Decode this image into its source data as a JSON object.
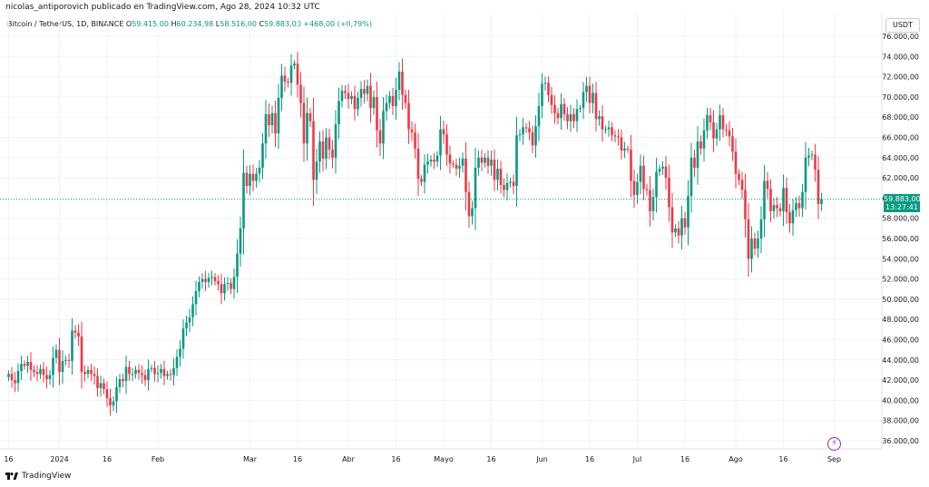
{
  "header": {
    "publisher_line": "nicolas_antiporovich publicado en TradingView.com, Ago 28, 2024 10:32 UTC"
  },
  "legend": {
    "symbol": "Bitcoin / TetherUS, 1D, BINANCE",
    "o_label": "O",
    "o_value": "59.415,00",
    "h_label": "H",
    "h_value": "60.234,98",
    "l_label": "L",
    "l_value": "58.516,00",
    "c_label": "C",
    "c_value": "59.883,00",
    "change": "+468,00 (+0,79%)"
  },
  "currency_button": "USDT",
  "last_price": {
    "value": "59.883,00",
    "countdown": "13:27:41"
  },
  "footer": {
    "brand": "TradingView"
  },
  "colors": {
    "up": "#089981",
    "down": "#f23645",
    "grid": "#f0f3fa",
    "axis_text": "#131722",
    "last_price_line": "#089981",
    "alert": "#9c27b0"
  },
  "icons": {
    "alert": "lightning-bolt-icon",
    "logo": "tradingview-logo-icon"
  },
  "chart_data": {
    "type": "candlestick",
    "title": "Bitcoin / TetherUS, 1D, BINANCE",
    "ylim": [
      35000,
      77000
    ],
    "grid": true,
    "y_ticks": [
      36000,
      38000,
      40000,
      42000,
      44000,
      46000,
      48000,
      50000,
      52000,
      54000,
      56000,
      58000,
      60000,
      62000,
      64000,
      66000,
      68000,
      70000,
      72000,
      74000,
      76000
    ],
    "y_tick_labels": [
      "36.000,00",
      "38.000,00",
      "40.000,00",
      "42.000,00",
      "44.000,00",
      "46.000,00",
      "48.000,00",
      "50.000,00",
      "52.000,00",
      "54.000,00",
      "56.000,00",
      "58.000,00",
      "60.000,00",
      "62.000,00",
      "64.000,00",
      "66.000,00",
      "68.000,00",
      "70.000,00",
      "72.000,00",
      "74.000,00",
      "76.000,00"
    ],
    "x_ticks": [
      {
        "label": "16",
        "date": "2023-12-16"
      },
      {
        "label": "2024",
        "date": "2024-01-01"
      },
      {
        "label": "16",
        "date": "2024-01-16"
      },
      {
        "label": "Feb",
        "date": "2024-02-01"
      },
      {
        "label": "Mar",
        "date": "2024-03-01"
      },
      {
        "label": "16",
        "date": "2024-03-16"
      },
      {
        "label": "Abr",
        "date": "2024-04-01"
      },
      {
        "label": "16",
        "date": "2024-04-16"
      },
      {
        "label": "Mayo",
        "date": "2024-05-01"
      },
      {
        "label": "16",
        "date": "2024-05-16"
      },
      {
        "label": "Jun",
        "date": "2024-06-01"
      },
      {
        "label": "16",
        "date": "2024-06-16"
      },
      {
        "label": "Jul",
        "date": "2024-07-01"
      },
      {
        "label": "16",
        "date": "2024-07-16"
      },
      {
        "label": "Ago",
        "date": "2024-08-01"
      },
      {
        "label": "16",
        "date": "2024-08-16"
      },
      {
        "label": "Sep",
        "date": "2024-09-01"
      }
    ],
    "last_price": 59883,
    "start_date": "2023-12-16",
    "closes": [
      42600,
      42000,
      41700,
      42900,
      43600,
      43400,
      43800,
      43000,
      42800,
      42600,
      43100,
      42500,
      42100,
      42500,
      44200,
      45000,
      42800,
      43900,
      44000,
      43900,
      46900,
      46700,
      46300,
      42800,
      42600,
      43000,
      42600,
      42400,
      41200,
      41700,
      41100,
      40200,
      39500,
      39900,
      41300,
      42100,
      41900,
      43300,
      42600,
      42600,
      43000,
      42700,
      42500,
      42000,
      43100,
      43200,
      42600,
      42700,
      43100,
      42400,
      42600,
      42500,
      43200,
      44300,
      45100,
      47100,
      47700,
      48200,
      49500,
      50800,
      51700,
      52000,
      51700,
      52100,
      52200,
      51800,
      51500,
      50600,
      51500,
      51600,
      51000,
      52200,
      54500,
      57000,
      62500,
      61200,
      62400,
      61700,
      62400,
      63000,
      65400,
      68300,
      67200,
      68400,
      66400,
      69900,
      72100,
      71500,
      71400,
      73100,
      73300,
      71200,
      69400,
      65400,
      68400,
      67600,
      61800,
      63600,
      65600,
      63900,
      66000,
      64800,
      64000,
      67300,
      69600,
      70600,
      70400,
      69800,
      70100,
      68800,
      69900,
      70800,
      70300,
      71100,
      68900,
      70000,
      66700,
      65400,
      68600,
      69400,
      70100,
      69100,
      70700,
      72500,
      70200,
      69400,
      66800,
      66500,
      64900,
      61900,
      61600,
      63300,
      63600,
      63800,
      63600,
      64200,
      66800,
      66300,
      64300,
      63400,
      63300,
      62900,
      63200,
      63900,
      60600,
      58200,
      59000,
      63000,
      64000,
      63500,
      64000,
      63200,
      63800,
      61800,
      62900,
      61300,
      60800,
      61500,
      61600,
      61200,
      66200,
      66300,
      67000,
      66900,
      66500,
      65200,
      67100,
      69100,
      71300,
      71400,
      70200,
      69200,
      68400,
      67900,
      69300,
      68300,
      67600,
      68300,
      67600,
      68800,
      68900,
      70500,
      71100,
      69400,
      70400,
      67800,
      68100,
      66800,
      66800,
      67000,
      66200,
      66100,
      66000,
      64700,
      64900,
      64800,
      61700,
      60300,
      61600,
      63200,
      60900,
      60800,
      58700,
      60100,
      62600,
      62900,
      63100,
      62000,
      59100,
      56600,
      57000,
      56300,
      58000,
      57100,
      60200,
      64000,
      63000,
      65600,
      64900,
      66700,
      68200,
      67500,
      65900,
      66800,
      68200,
      66800,
      66700,
      66100,
      64600,
      62400,
      61800,
      60800,
      57900,
      54000,
      56000,
      55000,
      56000,
      57900,
      61700,
      60900,
      58700,
      59300,
      59000,
      58700,
      61000,
      58600,
      57500,
      58800,
      59500,
      59000,
      60600,
      64000,
      64200,
      64300,
      62800,
      59415,
      59883
    ]
  }
}
